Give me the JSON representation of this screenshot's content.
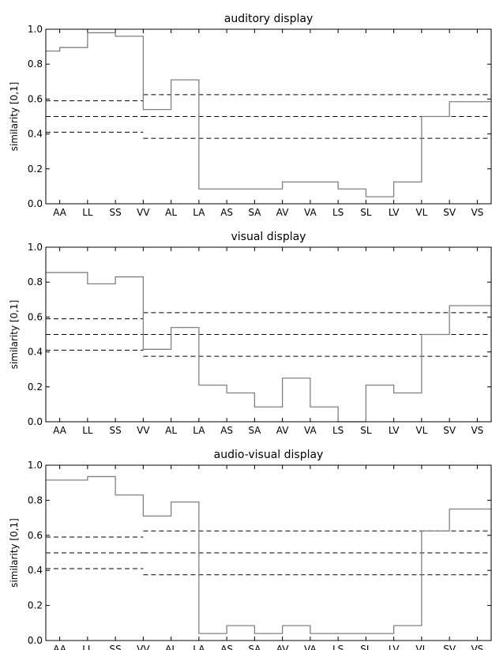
{
  "chart_data": [
    {
      "type": "line",
      "step": "mid",
      "title": "auditory display",
      "ylabel": "similarity [0,1]",
      "xlabel": "",
      "ylim": [
        0,
        1
      ],
      "yticks": [
        "0.0",
        "0.2",
        "0.4",
        "0.6",
        "0.8",
        "1.0"
      ],
      "categories": [
        "AA",
        "LL",
        "SS",
        "VV",
        "AL",
        "LA",
        "AS",
        "SA",
        "AV",
        "VA",
        "LS",
        "SL",
        "LV",
        "VL",
        "SV",
        "VS"
      ],
      "values": [
        0.875,
        0.895,
        0.98,
        0.96,
        0.54,
        0.71,
        0.085,
        0.085,
        0.085,
        0.125,
        0.125,
        0.085,
        0.04,
        0.125,
        0.5,
        0.585
      ],
      "thresholds": [
        {
          "from": 0,
          "to": 3,
          "values": [
            0.59,
            0.5,
            0.41
          ]
        },
        {
          "from": 4,
          "to": 15,
          "values": [
            0.625,
            0.5,
            0.375
          ]
        }
      ],
      "line_color": "#808080"
    },
    {
      "type": "line",
      "step": "mid",
      "title": "visual display",
      "ylabel": "similarity [0,1]",
      "xlabel": "",
      "ylim": [
        0,
        1
      ],
      "yticks": [
        "0.0",
        "0.2",
        "0.4",
        "0.6",
        "0.8",
        "1.0"
      ],
      "categories": [
        "AA",
        "LL",
        "SS",
        "VV",
        "AL",
        "LA",
        "AS",
        "SA",
        "AV",
        "VA",
        "LS",
        "SL",
        "LV",
        "VL",
        "SV",
        "VS"
      ],
      "values": [
        0.855,
        0.855,
        0.79,
        0.83,
        0.415,
        0.54,
        0.21,
        0.165,
        0.085,
        0.25,
        0.085,
        0.0,
        0.21,
        0.165,
        0.5,
        0.665
      ],
      "thresholds": [
        {
          "from": 0,
          "to": 3,
          "values": [
            0.59,
            0.5,
            0.41
          ]
        },
        {
          "from": 4,
          "to": 15,
          "values": [
            0.625,
            0.5,
            0.375
          ]
        }
      ],
      "line_color": "#808080"
    },
    {
      "type": "line",
      "step": "mid",
      "title": "audio-visual display",
      "ylabel": "similarity [0,1]",
      "xlabel": "",
      "ylim": [
        0,
        1
      ],
      "yticks": [
        "0.0",
        "0.2",
        "0.4",
        "0.6",
        "0.8",
        "1.0"
      ],
      "categories": [
        "AA",
        "LL",
        "SS",
        "VV",
        "AL",
        "LA",
        "AS",
        "SA",
        "AV",
        "VA",
        "LS",
        "SL",
        "LV",
        "VL",
        "SV",
        "VS"
      ],
      "values": [
        0.915,
        0.915,
        0.935,
        0.83,
        0.71,
        0.79,
        0.04,
        0.085,
        0.04,
        0.085,
        0.04,
        0.04,
        0.04,
        0.085,
        0.625,
        0.75
      ],
      "thresholds": [
        {
          "from": 0,
          "to": 3,
          "values": [
            0.59,
            0.5,
            0.41
          ]
        },
        {
          "from": 4,
          "to": 15,
          "values": [
            0.625,
            0.5,
            0.375
          ]
        }
      ],
      "line_color": "#808080"
    }
  ]
}
